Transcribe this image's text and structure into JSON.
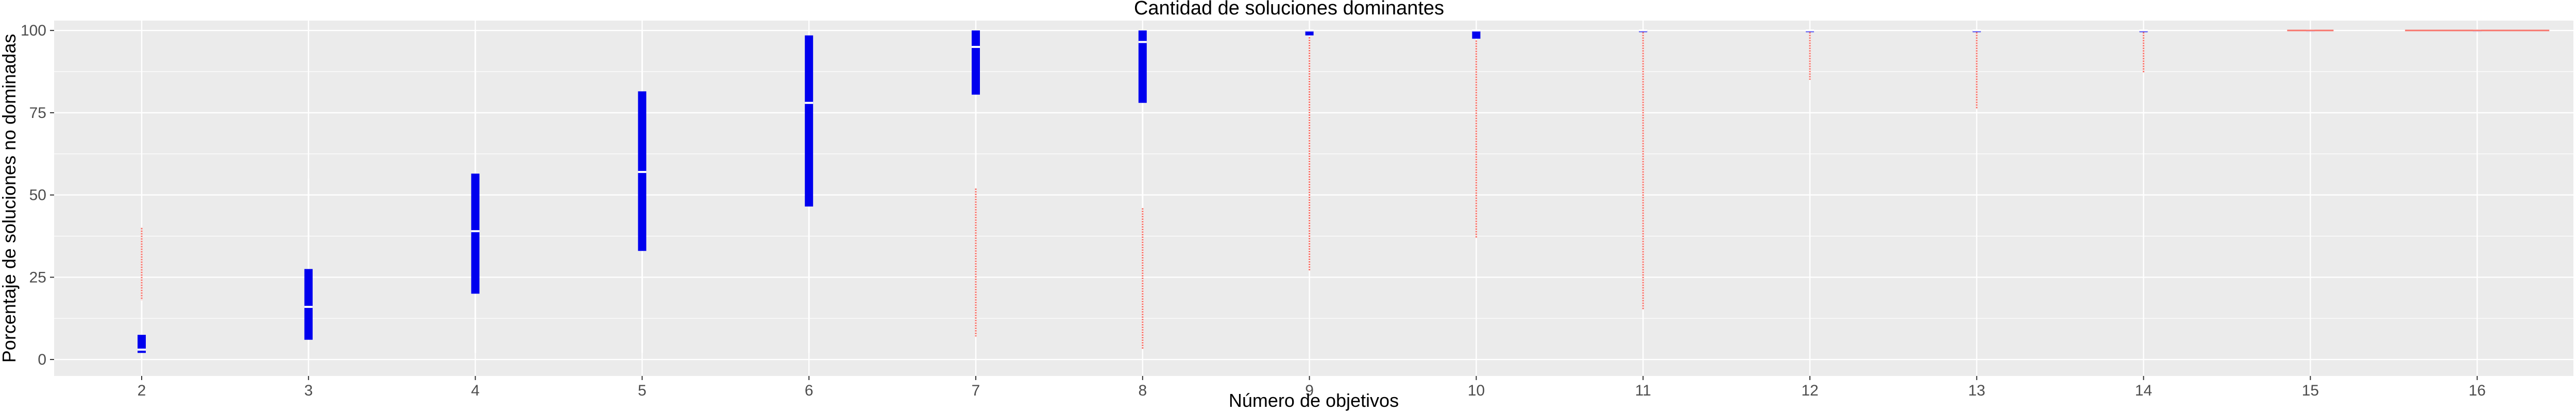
{
  "chart_data": {
    "type": "boxplot",
    "title": "Cantidad de soluciones dominantes",
    "xlabel": "Número de objetivos",
    "ylabel": "Porcentaje de soluciones no dominadas",
    "ylim": [
      -5,
      103
    ],
    "y_ticks": [
      0,
      25,
      50,
      75,
      100
    ],
    "x_ticks": [
      "2",
      "3",
      "4",
      "5",
      "6",
      "7",
      "8",
      "9",
      "10",
      "11",
      "12",
      "13",
      "14",
      "15",
      "16"
    ],
    "grid": true,
    "colors": {
      "panel": "#ebebeb",
      "grid": "#ffffff",
      "box": "#0000ee",
      "whisker": "#ffffff",
      "outlier": "#f8766d",
      "median": "#ffffff"
    },
    "boxes": [
      {
        "x": "2",
        "q1": 2,
        "median": 3,
        "q3": 7.5,
        "whisker_low": 0,
        "whisker_high": 18,
        "outlier_range": [
          18,
          40
        ]
      },
      {
        "x": "3",
        "q1": 6,
        "median": 16,
        "q3": 27.5,
        "whisker_low": 0,
        "whisker_high": 55,
        "outlier_range": null
      },
      {
        "x": "4",
        "q1": 20,
        "median": 39,
        "q3": 56.5,
        "whisker_low": 2,
        "whisker_high": 100,
        "outlier_range": null
      },
      {
        "x": "5",
        "q1": 33,
        "median": 57,
        "q3": 81.5,
        "whisker_low": 2,
        "whisker_high": 100,
        "outlier_range": null
      },
      {
        "x": "6",
        "q1": 46.5,
        "median": 78,
        "q3": 98.5,
        "whisker_low": 2,
        "whisker_high": 100,
        "outlier_range": null
      },
      {
        "x": "7",
        "q1": 80.5,
        "median": 95,
        "q3": 100,
        "whisker_low": 52,
        "whisker_high": 100,
        "outlier_range": [
          7,
          52
        ]
      },
      {
        "x": "8",
        "q1": 78,
        "median": 96.5,
        "q3": 100,
        "whisker_low": 46,
        "whisker_high": 100,
        "outlier_range": [
          3,
          46
        ]
      },
      {
        "x": "9",
        "q1": 98.5,
        "median": 100,
        "q3": 100,
        "whisker_low": 98,
        "whisker_high": 100,
        "outlier_range": [
          27,
          98
        ]
      },
      {
        "x": "10",
        "q1": 97.5,
        "median": 100,
        "q3": 100,
        "whisker_low": 97,
        "whisker_high": 100,
        "outlier_range": [
          37,
          97
        ]
      },
      {
        "x": "11",
        "q1": 99.5,
        "median": 100,
        "q3": 100,
        "whisker_low": 99.5,
        "whisker_high": 100,
        "outlier_range": [
          15,
          99.5
        ]
      },
      {
        "x": "12",
        "q1": 99.5,
        "median": 100,
        "q3": 100,
        "whisker_low": 99.5,
        "whisker_high": 100,
        "outlier_range": [
          85,
          99.5
        ]
      },
      {
        "x": "13",
        "q1": 99.5,
        "median": 100,
        "q3": 100,
        "whisker_low": 99.5,
        "whisker_high": 100,
        "outlier_range": [
          76,
          99.5
        ]
      },
      {
        "x": "14",
        "q1": 99.5,
        "median": 100,
        "q3": 100,
        "whisker_low": 99.5,
        "whisker_high": 100,
        "outlier_range": [
          87,
          99.5
        ]
      },
      {
        "x": "15",
        "q1": 100,
        "median": 100,
        "q3": 100,
        "whisker_low": 100,
        "whisker_high": 100,
        "outlier_range": [
          99.8,
          100
        ]
      },
      {
        "x": "16",
        "q1": 100,
        "median": 100,
        "q3": 100,
        "whisker_low": 100,
        "whisker_high": 100,
        "outlier_range": [
          99.8,
          100
        ]
      }
    ]
  }
}
